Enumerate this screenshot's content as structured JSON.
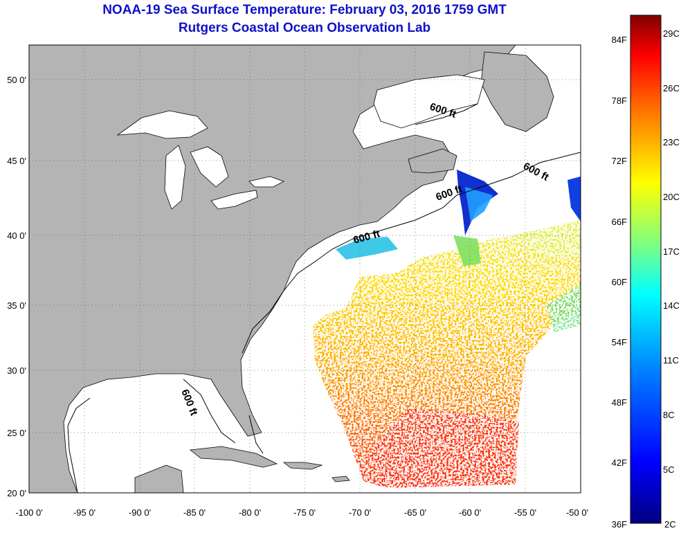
{
  "header": {
    "title": "NOAA-19 Sea Surface Temperature:  February 03, 2016 1759 GMT",
    "subtitle": "Rutgers Coastal Ocean Observation Lab"
  },
  "map": {
    "lon_range": [
      -100,
      -50
    ],
    "lat_range": [
      20,
      52.5
    ],
    "land_color": "#b4b4b4",
    "ocean_color": "#ffffff",
    "grid": "dotted",
    "lon_ticks": [
      "-100 0'",
      "-95 0'",
      "-90 0'",
      "-85 0'",
      "-80 0'",
      "-75 0'",
      "-70 0'",
      "-65 0'",
      "-60 0'",
      "-55 0'",
      "-50 0'"
    ],
    "lat_ticks": [
      "20 0'",
      "25 0'",
      "30 0'",
      "35 0'",
      "40 0'",
      "45 0'",
      "50 0'"
    ],
    "contour_labels": [
      "600 ft",
      "600 ft",
      "600 ft",
      "600 ft",
      "600 ft"
    ]
  },
  "colorbar": {
    "fahrenheit_labels": [
      "84F",
      "78F",
      "72F",
      "66F",
      "60F",
      "54F",
      "48F",
      "42F",
      "36F"
    ],
    "celsius_labels": [
      "29C",
      "26C",
      "23C",
      "20C",
      "17C",
      "14C",
      "11C",
      "8C",
      "5C",
      "2C"
    ],
    "colors": [
      "#800000",
      "#ff0000",
      "#ff8000",
      "#ffff00",
      "#80ff80",
      "#00ffff",
      "#0080ff",
      "#0000ff",
      "#000080"
    ]
  }
}
